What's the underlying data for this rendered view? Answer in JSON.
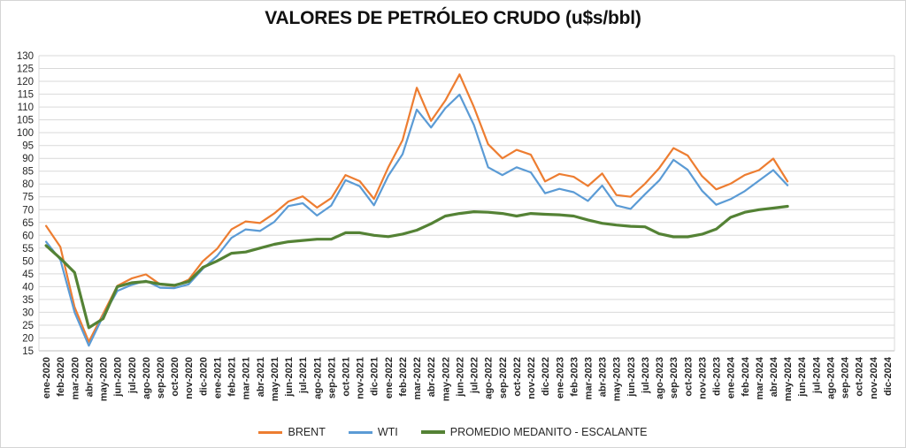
{
  "title": "VALORES DE PETRÓLEO CRUDO (u$s/bbl)",
  "colors": {
    "brent": "#ED7D31",
    "wti": "#5B9BD5",
    "medanito": "#548235",
    "gridline": "#D9D9D9",
    "axis_line": "#BFBFBF",
    "axis_text": "#262626"
  },
  "chart_data": {
    "type": "line",
    "title": "VALORES DE PETRÓLEO CRUDO (u$s/bbl)",
    "xlabel": "",
    "ylabel": "",
    "ylim": [
      15,
      130
    ],
    "ytick_step": 5,
    "grid": true,
    "legend_position": "bottom",
    "categories": [
      "ene-2020",
      "feb-2020",
      "mar-2020",
      "abr-2020",
      "may-2020",
      "jun-2020",
      "jul-2020",
      "ago-2020",
      "sep-2020",
      "oct-2020",
      "nov-2020",
      "dic-2020",
      "ene-2021",
      "feb-2021",
      "mar-2021",
      "abr-2021",
      "may-2021",
      "jun-2021",
      "jul-2021",
      "ago-2021",
      "sep-2021",
      "oct-2021",
      "nov-2021",
      "dic-2021",
      "ene-2022",
      "feb-2022",
      "mar-2022",
      "abr-2022",
      "may-2022",
      "jun-2022",
      "jul-2022",
      "ago-2022",
      "sep-2022",
      "oct-2022",
      "nov-2022",
      "dic-2022",
      "ene-2023",
      "feb-2023",
      "mar-2023",
      "abr-2023",
      "may-2023",
      "jun-2023",
      "jul-2023",
      "ago-2023",
      "sep-2023",
      "oct-2023",
      "nov-2023",
      "dic-2023",
      "ene-2024",
      "feb-2024",
      "mar-2024",
      "abr-2024",
      "may-2024",
      "jun-2024",
      "jul-2024",
      "ago-2024",
      "sep-2024",
      "oct-2024",
      "nov-2024",
      "dic-2024"
    ],
    "series": [
      {
        "name": "BRENT",
        "color": "#ED7D31",
        "stroke_width": 2.2,
        "values": [
          63.7,
          55.5,
          32.0,
          18.5,
          29.4,
          40.3,
          43.2,
          44.8,
          40.9,
          40.2,
          42.7,
          49.9,
          54.8,
          62.3,
          65.4,
          64.8,
          68.5,
          73.2,
          75.2,
          70.8,
          74.5,
          83.5,
          81.1,
          74.2,
          86.5,
          97.1,
          117.5,
          104.6,
          112.5,
          122.7,
          110.0,
          95.5,
          90.0,
          93.3,
          91.4,
          81.0,
          83.9,
          82.8,
          79.2,
          84.1,
          75.7,
          75.0,
          80.1,
          86.2,
          94.0,
          91.1,
          83.1,
          77.9,
          80.1,
          83.5,
          85.4,
          89.9,
          81.0
        ]
      },
      {
        "name": "WTI",
        "color": "#5B9BD5",
        "stroke_width": 2.2,
        "values": [
          57.5,
          50.5,
          30.0,
          17.0,
          28.5,
          38.3,
          40.7,
          42.3,
          39.6,
          39.4,
          40.9,
          47.0,
          52.0,
          59.0,
          62.3,
          61.7,
          65.2,
          71.4,
          72.5,
          67.7,
          71.6,
          81.5,
          79.1,
          71.7,
          83.2,
          91.6,
          109.0,
          102.0,
          109.5,
          114.8,
          103.0,
          86.5,
          83.5,
          86.5,
          84.5,
          76.4,
          78.1,
          76.8,
          73.4,
          79.4,
          71.6,
          70.3,
          76.0,
          81.4,
          89.4,
          85.5,
          77.4,
          71.9,
          74.1,
          77.2,
          81.3,
          85.4,
          79.5
        ]
      },
      {
        "name": "PROMEDIO MEDANITO - ESCALANTE",
        "color": "#548235",
        "stroke_width": 3.2,
        "values": [
          56.0,
          51.0,
          45.5,
          24.0,
          27.5,
          40.0,
          41.5,
          42.0,
          41.0,
          40.5,
          42.0,
          47.5,
          50.0,
          53.0,
          53.5,
          55.0,
          56.5,
          57.5,
          58.0,
          58.5,
          58.5,
          61.0,
          61.0,
          60.0,
          59.5,
          60.5,
          62.0,
          64.5,
          67.5,
          68.5,
          69.2,
          69.0,
          68.5,
          67.5,
          68.5,
          68.2,
          68.0,
          67.5,
          66.0,
          64.7,
          64.0,
          63.5,
          63.3,
          60.6,
          59.4,
          59.4,
          60.4,
          62.4,
          67.0,
          69.0,
          70.0,
          70.6,
          71.3
        ]
      }
    ]
  }
}
